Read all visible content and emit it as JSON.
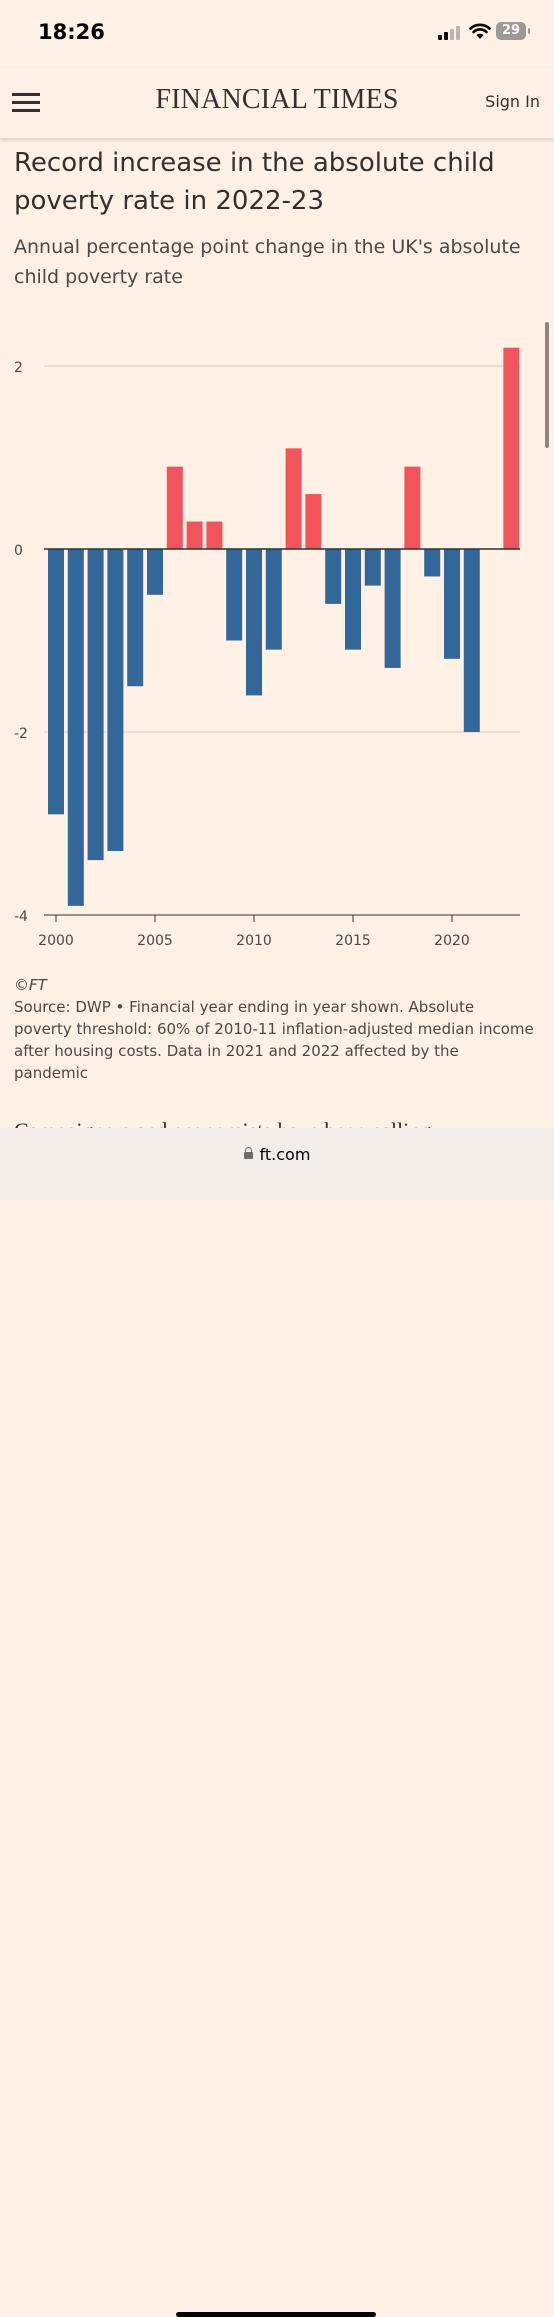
{
  "status_bar": {
    "time": "18:26",
    "battery": "29",
    "icons": [
      "signal-icon",
      "wifi-icon",
      "battery-icon"
    ]
  },
  "header": {
    "logo": "FINANCIAL TIMES",
    "sign_in": "Sign In",
    "menu_icon": "hamburger-menu-icon"
  },
  "article": {
    "title": "Record increase in the absolute child poverty rate in 2022-23",
    "subtitle": "Annual percentage point change in the UK's absolute child poverty rate"
  },
  "chart_data": {
    "type": "bar",
    "title": "Record increase in the absolute child poverty rate in 2022-23",
    "subtitle": "Annual percentage point change in the UK's absolute child poverty rate",
    "x": [
      2000,
      2001,
      2002,
      2003,
      2004,
      2005,
      2006,
      2007,
      2008,
      2009,
      2010,
      2011,
      2012,
      2013,
      2014,
      2015,
      2016,
      2017,
      2018,
      2019,
      2020,
      2021,
      2022,
      2023
    ],
    "values": [
      -2.9,
      -3.9,
      -3.4,
      -3.3,
      -1.5,
      -0.5,
      0.9,
      0.3,
      0.3,
      -1.0,
      -1.6,
      -1.1,
      1.1,
      0.6,
      -0.6,
      -1.1,
      -0.4,
      -1.3,
      0.9,
      -0.3,
      -1.2,
      -2.0,
      0.0,
      2.2
    ],
    "x_ticks": [
      "2000",
      "2005",
      "2010",
      "2015",
      "2020"
    ],
    "y_ticks": [
      "2",
      "0",
      "-2",
      "-4"
    ],
    "ylim": [
      -4,
      2.4
    ],
    "xlabel": "",
    "ylabel": "",
    "grid": true,
    "colors": {
      "positive": "#f2545b",
      "negative": "#336699",
      "grid": "#d9cbbf",
      "axis": "#33302e"
    }
  },
  "notes": {
    "copyright": "©FT",
    "source": "Source: DWP • Financial year ending in year shown. Absolute poverty threshold: 60% of 2010-11 inflation-adjusted median income after housing costs. Data in 2021 and 2022 affected by the pandemic"
  },
  "body_peek": "Campaigners and economists have been calling",
  "browser": {
    "url": "ft.com"
  }
}
